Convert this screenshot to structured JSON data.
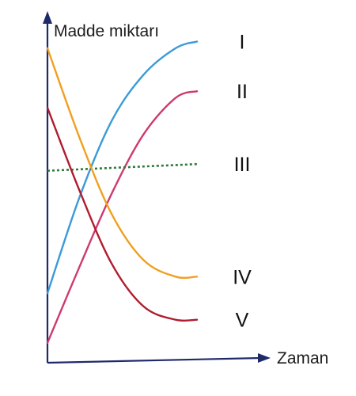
{
  "chart_data": {
    "type": "line",
    "title": "",
    "ylabel": "Madde miktarı",
    "xlabel": "Zaman",
    "xlim": [
      0,
      1
    ],
    "ylim": [
      0,
      1
    ],
    "grid": false,
    "legend": "none",
    "series": [
      {
        "name": "I",
        "color": "#3b9ad8",
        "style": "solid",
        "x": [
          0,
          0.15,
          0.3,
          0.45,
          0.6,
          0.7
        ],
        "y": [
          0.21,
          0.5,
          0.73,
          0.87,
          0.95,
          0.97
        ]
      },
      {
        "name": "II",
        "color": "#cf3a6e",
        "style": "solid",
        "x": [
          0,
          0.15,
          0.3,
          0.45,
          0.6,
          0.7
        ],
        "y": [
          0.06,
          0.29,
          0.51,
          0.69,
          0.8,
          0.82
        ]
      },
      {
        "name": "III",
        "color": "#2f7a3a",
        "style": "dotted",
        "x": [
          0,
          0.7
        ],
        "y": [
          0.58,
          0.6
        ]
      },
      {
        "name": "IV",
        "color": "#f0a020",
        "style": "solid",
        "x": [
          0,
          0.15,
          0.3,
          0.45,
          0.6,
          0.7
        ],
        "y": [
          0.95,
          0.68,
          0.45,
          0.31,
          0.26,
          0.26
        ]
      },
      {
        "name": "V",
        "color": "#b01c2e",
        "style": "solid",
        "x": [
          0,
          0.15,
          0.3,
          0.45,
          0.6,
          0.7
        ],
        "y": [
          0.77,
          0.52,
          0.3,
          0.17,
          0.13,
          0.13
        ]
      }
    ]
  }
}
